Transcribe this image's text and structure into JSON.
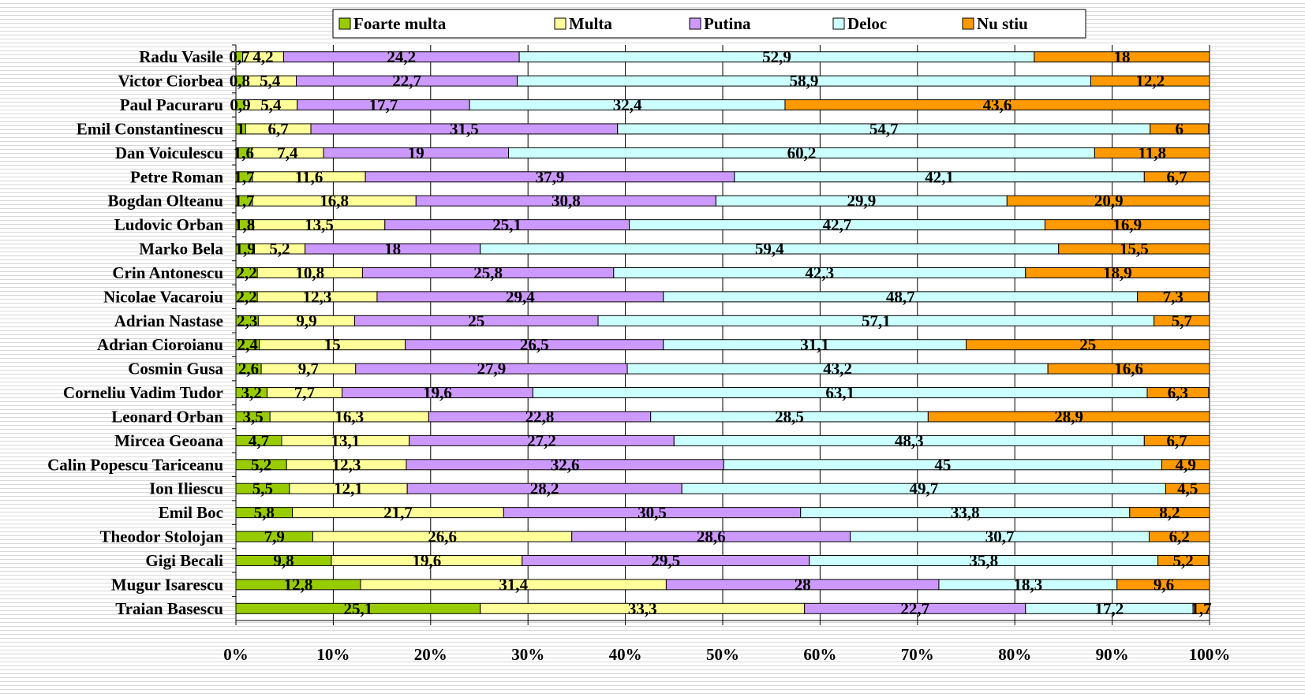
{
  "chart_data": {
    "type": "bar",
    "orientation": "horizontal",
    "stacked": true,
    "categories": [
      "Radu Vasile",
      "Victor Ciorbea",
      "Paul Pacuraru",
      "Emil Constantinescu",
      "Dan Voiculescu",
      "Petre Roman",
      "Bogdan Olteanu",
      "Ludovic Orban",
      "Marko Bela",
      "Crin Antonescu",
      "Nicolae Vacaroiu",
      "Adrian Nastase",
      "Adrian Cioroianu",
      "Cosmin Gusa",
      "Corneliu Vadim Tudor",
      "Leonard Orban",
      "Mircea Geoana",
      "Calin Popescu Tariceanu",
      "Ion Iliescu",
      "Emil Boc",
      "Theodor Stolojan",
      "Gigi Becali",
      "Mugur Isarescu",
      "Traian Basescu"
    ],
    "series": [
      {
        "name": "Foarte multa",
        "color": "#99cc00",
        "values": [
          0.7,
          0.8,
          0.9,
          1,
          1.6,
          1.7,
          1.7,
          1.8,
          1.9,
          2.2,
          2.2,
          2.3,
          2.4,
          2.6,
          3.2,
          3.5,
          4.7,
          5.2,
          5.5,
          5.8,
          7.9,
          9.8,
          12.8,
          25.1
        ],
        "value_labels": [
          "0,7",
          "0,8",
          "0,9",
          "1",
          "1,6",
          "1,7",
          "1,7",
          "1,8",
          "1,9",
          "2,2",
          "2,2",
          "2,3",
          "2,4",
          "2,6",
          "3,2",
          "3,5",
          "4,7",
          "5,2",
          "5,5",
          "5,8",
          "7,9",
          "9,8",
          "12,8",
          "25,1"
        ]
      },
      {
        "name": "Multa",
        "color": "#ffff99",
        "values": [
          4.2,
          5.4,
          5.4,
          6.7,
          7.4,
          11.6,
          16.8,
          13.5,
          5.2,
          10.8,
          12.3,
          9.9,
          15,
          9.7,
          7.7,
          16.3,
          13.1,
          12.3,
          12.1,
          21.7,
          26.6,
          19.6,
          31.4,
          33.3
        ],
        "value_labels": [
          "4,2",
          "5,4",
          "5,4",
          "6,7",
          "7,4",
          "11,6",
          "16,8",
          "13,5",
          "5,2",
          "10,8",
          "12,3",
          "9,9",
          "15",
          "9,7",
          "7,7",
          "16,3",
          "13,1",
          "12,3",
          "12,1",
          "21,7",
          "26,6",
          "19,6",
          "31,4",
          "33,3"
        ]
      },
      {
        "name": "Putina",
        "color": "#cc99ff",
        "values": [
          24.2,
          22.7,
          17.7,
          31.5,
          19,
          37.9,
          30.8,
          25.1,
          18,
          25.8,
          29.4,
          25,
          26.5,
          27.9,
          19.6,
          22.8,
          27.2,
          32.6,
          28.2,
          30.5,
          28.6,
          29.5,
          28,
          22.7
        ],
        "value_labels": [
          "24,2",
          "22,7",
          "17,7",
          "31,5",
          "19",
          "37,9",
          "30,8",
          "25,1",
          "18",
          "25,8",
          "29,4",
          "25",
          "26,5",
          "27,9",
          "19,6",
          "22,8",
          "27,2",
          "32,6",
          "28,2",
          "30,5",
          "28,6",
          "29,5",
          "28",
          "22,7"
        ]
      },
      {
        "name": "Deloc",
        "color": "#ccffff",
        "values": [
          52.9,
          58.9,
          32.4,
          54.7,
          60.2,
          42.1,
          29.9,
          42.7,
          59.4,
          42.3,
          48.7,
          57.1,
          31.1,
          43.2,
          63.1,
          28.5,
          48.3,
          45,
          49.7,
          33.8,
          30.7,
          35.8,
          18.3,
          17.2
        ],
        "value_labels": [
          "52,9",
          "58,9",
          "32,4",
          "54,7",
          "60,2",
          "42,1",
          "29,9",
          "42,7",
          "59,4",
          "42,3",
          "48,7",
          "57,1",
          "31,1",
          "43,2",
          "63,1",
          "28,5",
          "48,3",
          "45",
          "49,7",
          "33,8",
          "30,7",
          "35,8",
          "18,3",
          "17,2"
        ]
      },
      {
        "name": "Nu stiu",
        "color": "#ff9900",
        "values": [
          18,
          12.2,
          43.6,
          6,
          11.8,
          6.7,
          20.9,
          16.9,
          15.5,
          18.9,
          7.3,
          5.7,
          25,
          16.6,
          6.3,
          28.9,
          6.7,
          4.9,
          4.5,
          8.2,
          6.2,
          5.2,
          9.6,
          1.7
        ],
        "value_labels": [
          "18",
          "12,2",
          "43,6",
          "6",
          "11,8",
          "6,7",
          "20,9",
          "16,9",
          "15,5",
          "18,9",
          "7,3",
          "5,7",
          "25",
          "16,6",
          "6,3",
          "28,9",
          "6,7",
          "4,9",
          "4,5",
          "8,2",
          "6,2",
          "5,2",
          "9,6",
          "1,7"
        ]
      }
    ],
    "xlim": [
      0,
      100
    ],
    "xticks": [
      {
        "value": 0,
        "label": "0%"
      },
      {
        "value": 10,
        "label": "10%"
      },
      {
        "value": 20,
        "label": "20%"
      },
      {
        "value": 30,
        "label": "30%"
      },
      {
        "value": 40,
        "label": "40%"
      },
      {
        "value": 50,
        "label": "50%"
      },
      {
        "value": 60,
        "label": "60%"
      },
      {
        "value": 70,
        "label": "70%"
      },
      {
        "value": 80,
        "label": "80%"
      },
      {
        "value": 90,
        "label": "90%"
      },
      {
        "value": 100,
        "label": "100%"
      }
    ],
    "grid": true,
    "legend": "top"
  }
}
